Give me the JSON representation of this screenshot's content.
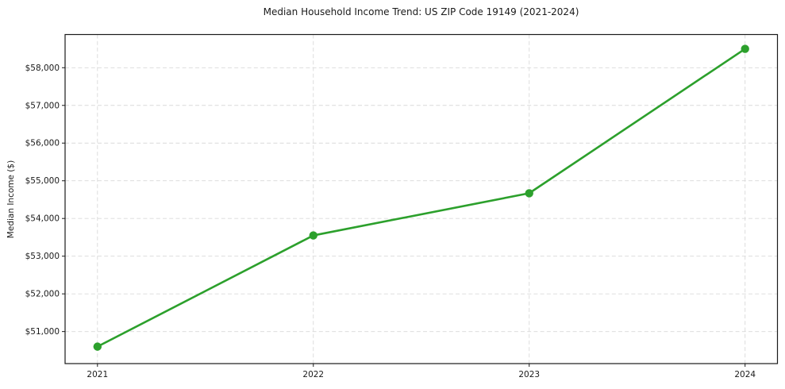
{
  "chart_data": {
    "type": "line",
    "title": "Median Household Income Trend: US ZIP Code 19149 (2021-2024)",
    "xlabel": "",
    "ylabel": "Median Income ($)",
    "x": [
      2021,
      2022,
      2023,
      2024
    ],
    "xtick_labels": [
      "2021",
      "2022",
      "2023",
      "2024"
    ],
    "series": [
      {
        "name": "Median Household Income",
        "values": [
          50600,
          53550,
          54670,
          58500
        ]
      }
    ],
    "yticks": [
      51000,
      52000,
      53000,
      54000,
      55000,
      56000,
      57000,
      58000
    ],
    "ytick_labels": [
      "$51,000",
      "$52,000",
      "$53,000",
      "$54,000",
      "$55,000",
      "$56,000",
      "$57,000",
      "$58,000"
    ],
    "xlim": [
      2020.85,
      2024.15
    ],
    "ylim": [
      50150,
      58880
    ],
    "grid": "dashed-both-axes",
    "legend": "none",
    "colors": {
      "line": "#2ca02c",
      "marker": "#2ca02c",
      "grid": "#d9d9d9",
      "spine": "#1a1a1a",
      "text": "#1a1a1a",
      "background": "#ffffff"
    }
  }
}
